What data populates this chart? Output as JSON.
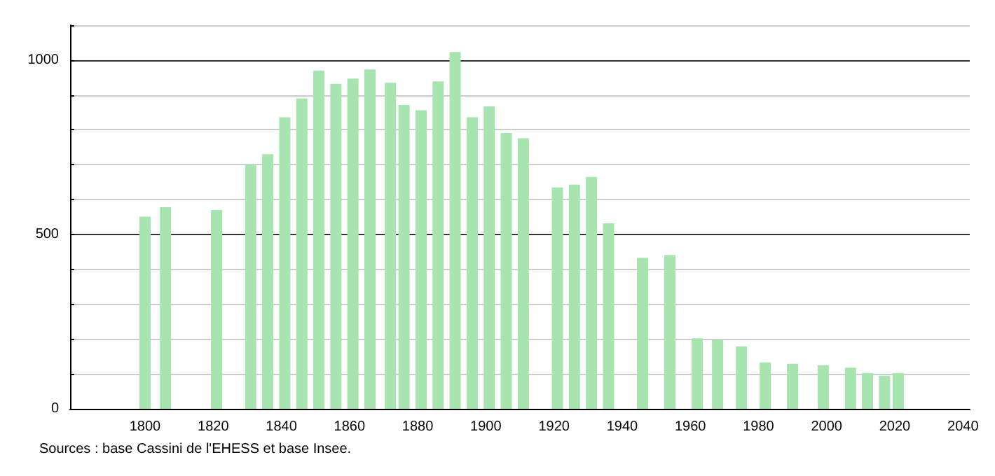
{
  "chart_data": {
    "type": "bar",
    "x": [
      1800,
      1806,
      1821,
      1831,
      1836,
      1841,
      1846,
      1851,
      1856,
      1861,
      1866,
      1872,
      1876,
      1881,
      1886,
      1891,
      1896,
      1901,
      1906,
      1911,
      1921,
      1926,
      1931,
      1936,
      1946,
      1954,
      1962,
      1968,
      1975,
      1982,
      1990,
      1999,
      2007,
      2012,
      2017,
      2021
    ],
    "values": [
      551,
      578,
      570,
      700,
      730,
      836,
      890,
      970,
      932,
      947,
      973,
      935,
      871,
      856,
      939,
      1023,
      836,
      867,
      791,
      776,
      635,
      643,
      665,
      532,
      433,
      441,
      202,
      198,
      179,
      133,
      129,
      125,
      118,
      103,
      95,
      103
    ],
    "color": "#a8e4b0",
    "xlim": [
      1778,
      2042
    ],
    "xticks": [
      1800,
      1820,
      1840,
      1860,
      1880,
      1900,
      1920,
      1940,
      1960,
      1980,
      2000,
      2020,
      2040
    ],
    "ylim": [
      0,
      1100
    ],
    "yticks": [
      0,
      {
        "value": 100,
        "label": null
      },
      {
        "value": 200,
        "label": null
      },
      {
        "value": 300,
        "label": null
      },
      {
        "value": 400,
        "label": null
      },
      500,
      {
        "value": 600,
        "label": null
      },
      {
        "value": 700,
        "label": null
      },
      {
        "value": 800,
        "label": null
      },
      {
        "value": 900,
        "label": null
      },
      1000,
      {
        "value": 1100,
        "label": null
      }
    ],
    "grid": "y",
    "annotations": [
      "Sources : base Cassini de l'EHESS et base Insee."
    ]
  }
}
